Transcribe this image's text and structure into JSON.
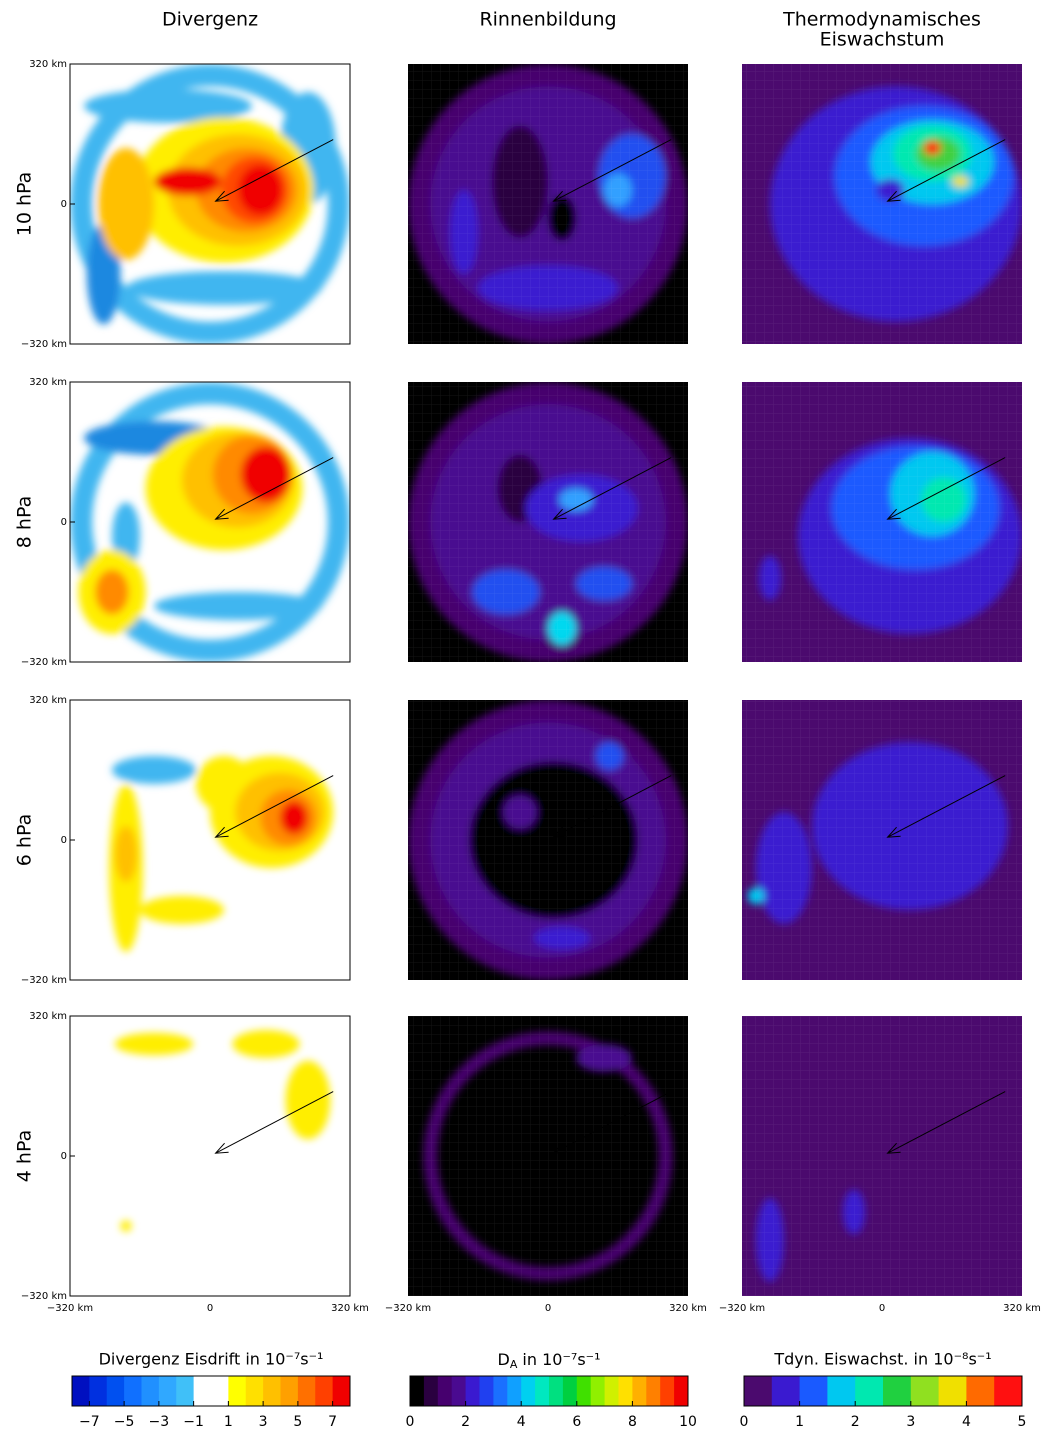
{
  "columns": [
    {
      "title": [
        "Divergenz"
      ],
      "colorbar": {
        "label": "Divergenz Eisdrift in 10⁻⁷s⁻¹",
        "range": [
          -8,
          8
        ],
        "colors": [
          "#0010c0",
          "#0030e0",
          "#0050f0",
          "#1070ff",
          "#2090ff",
          "#30a8ff",
          "#40c0f8",
          "#ffffff",
          "#ffffff",
          "#ffff00",
          "#ffe000",
          "#ffc000",
          "#ffa000",
          "#ff7000",
          "#ff4000",
          "#f00000"
        ],
        "ticks": [
          {
            "value": -7,
            "label": "−7"
          },
          {
            "value": -5,
            "label": "−5"
          },
          {
            "value": -3,
            "label": "−3"
          },
          {
            "value": -1,
            "label": "−1"
          },
          1,
          3,
          5,
          7
        ]
      }
    },
    {
      "title": [
        "Rinnenbildung"
      ],
      "colorbar": {
        "label": {
          "before": "D",
          "sub": "A",
          "after": " in 10⁻⁷s⁻¹"
        },
        "range": [
          0,
          10
        ],
        "colors": [
          "#000000",
          "#2a0040",
          "#46006e",
          "#4a0a90",
          "#3a1ad0",
          "#2040f0",
          "#1a70ff",
          "#10a0ff",
          "#00d0f0",
          "#00e8c0",
          "#00e080",
          "#00d040",
          "#40e000",
          "#90f000",
          "#d0f000",
          "#ffe000",
          "#ffb000",
          "#ff8000",
          "#ff4000",
          "#f00000"
        ],
        "ticks": [
          0,
          2,
          4,
          6,
          8,
          10
        ]
      }
    },
    {
      "title": [
        "Thermodynamisches",
        "Eiswachstum"
      ],
      "colorbar": {
        "label": "Tdyn. Eiswachst. in 10⁻⁸s⁻¹",
        "range": [
          0,
          5
        ],
        "colors": [
          "#4b0a6e",
          "#3a1ad0",
          "#1a5aff",
          "#00c8f0",
          "#00e8b0",
          "#20d040",
          "#90e020",
          "#f0e000",
          "#ff6a00",
          "#ff1010"
        ],
        "ticks": [
          0,
          1,
          2,
          3,
          4,
          5
        ]
      }
    }
  ],
  "rows": [
    "10 hPa",
    "8 hPa",
    "6 hPa",
    "4 hPa"
  ],
  "y_axis_labels": [
    "320 km",
    "0",
    "−320 km"
  ],
  "x_axis_labels": [
    "−320 km",
    "0",
    "320 km"
  ]
}
